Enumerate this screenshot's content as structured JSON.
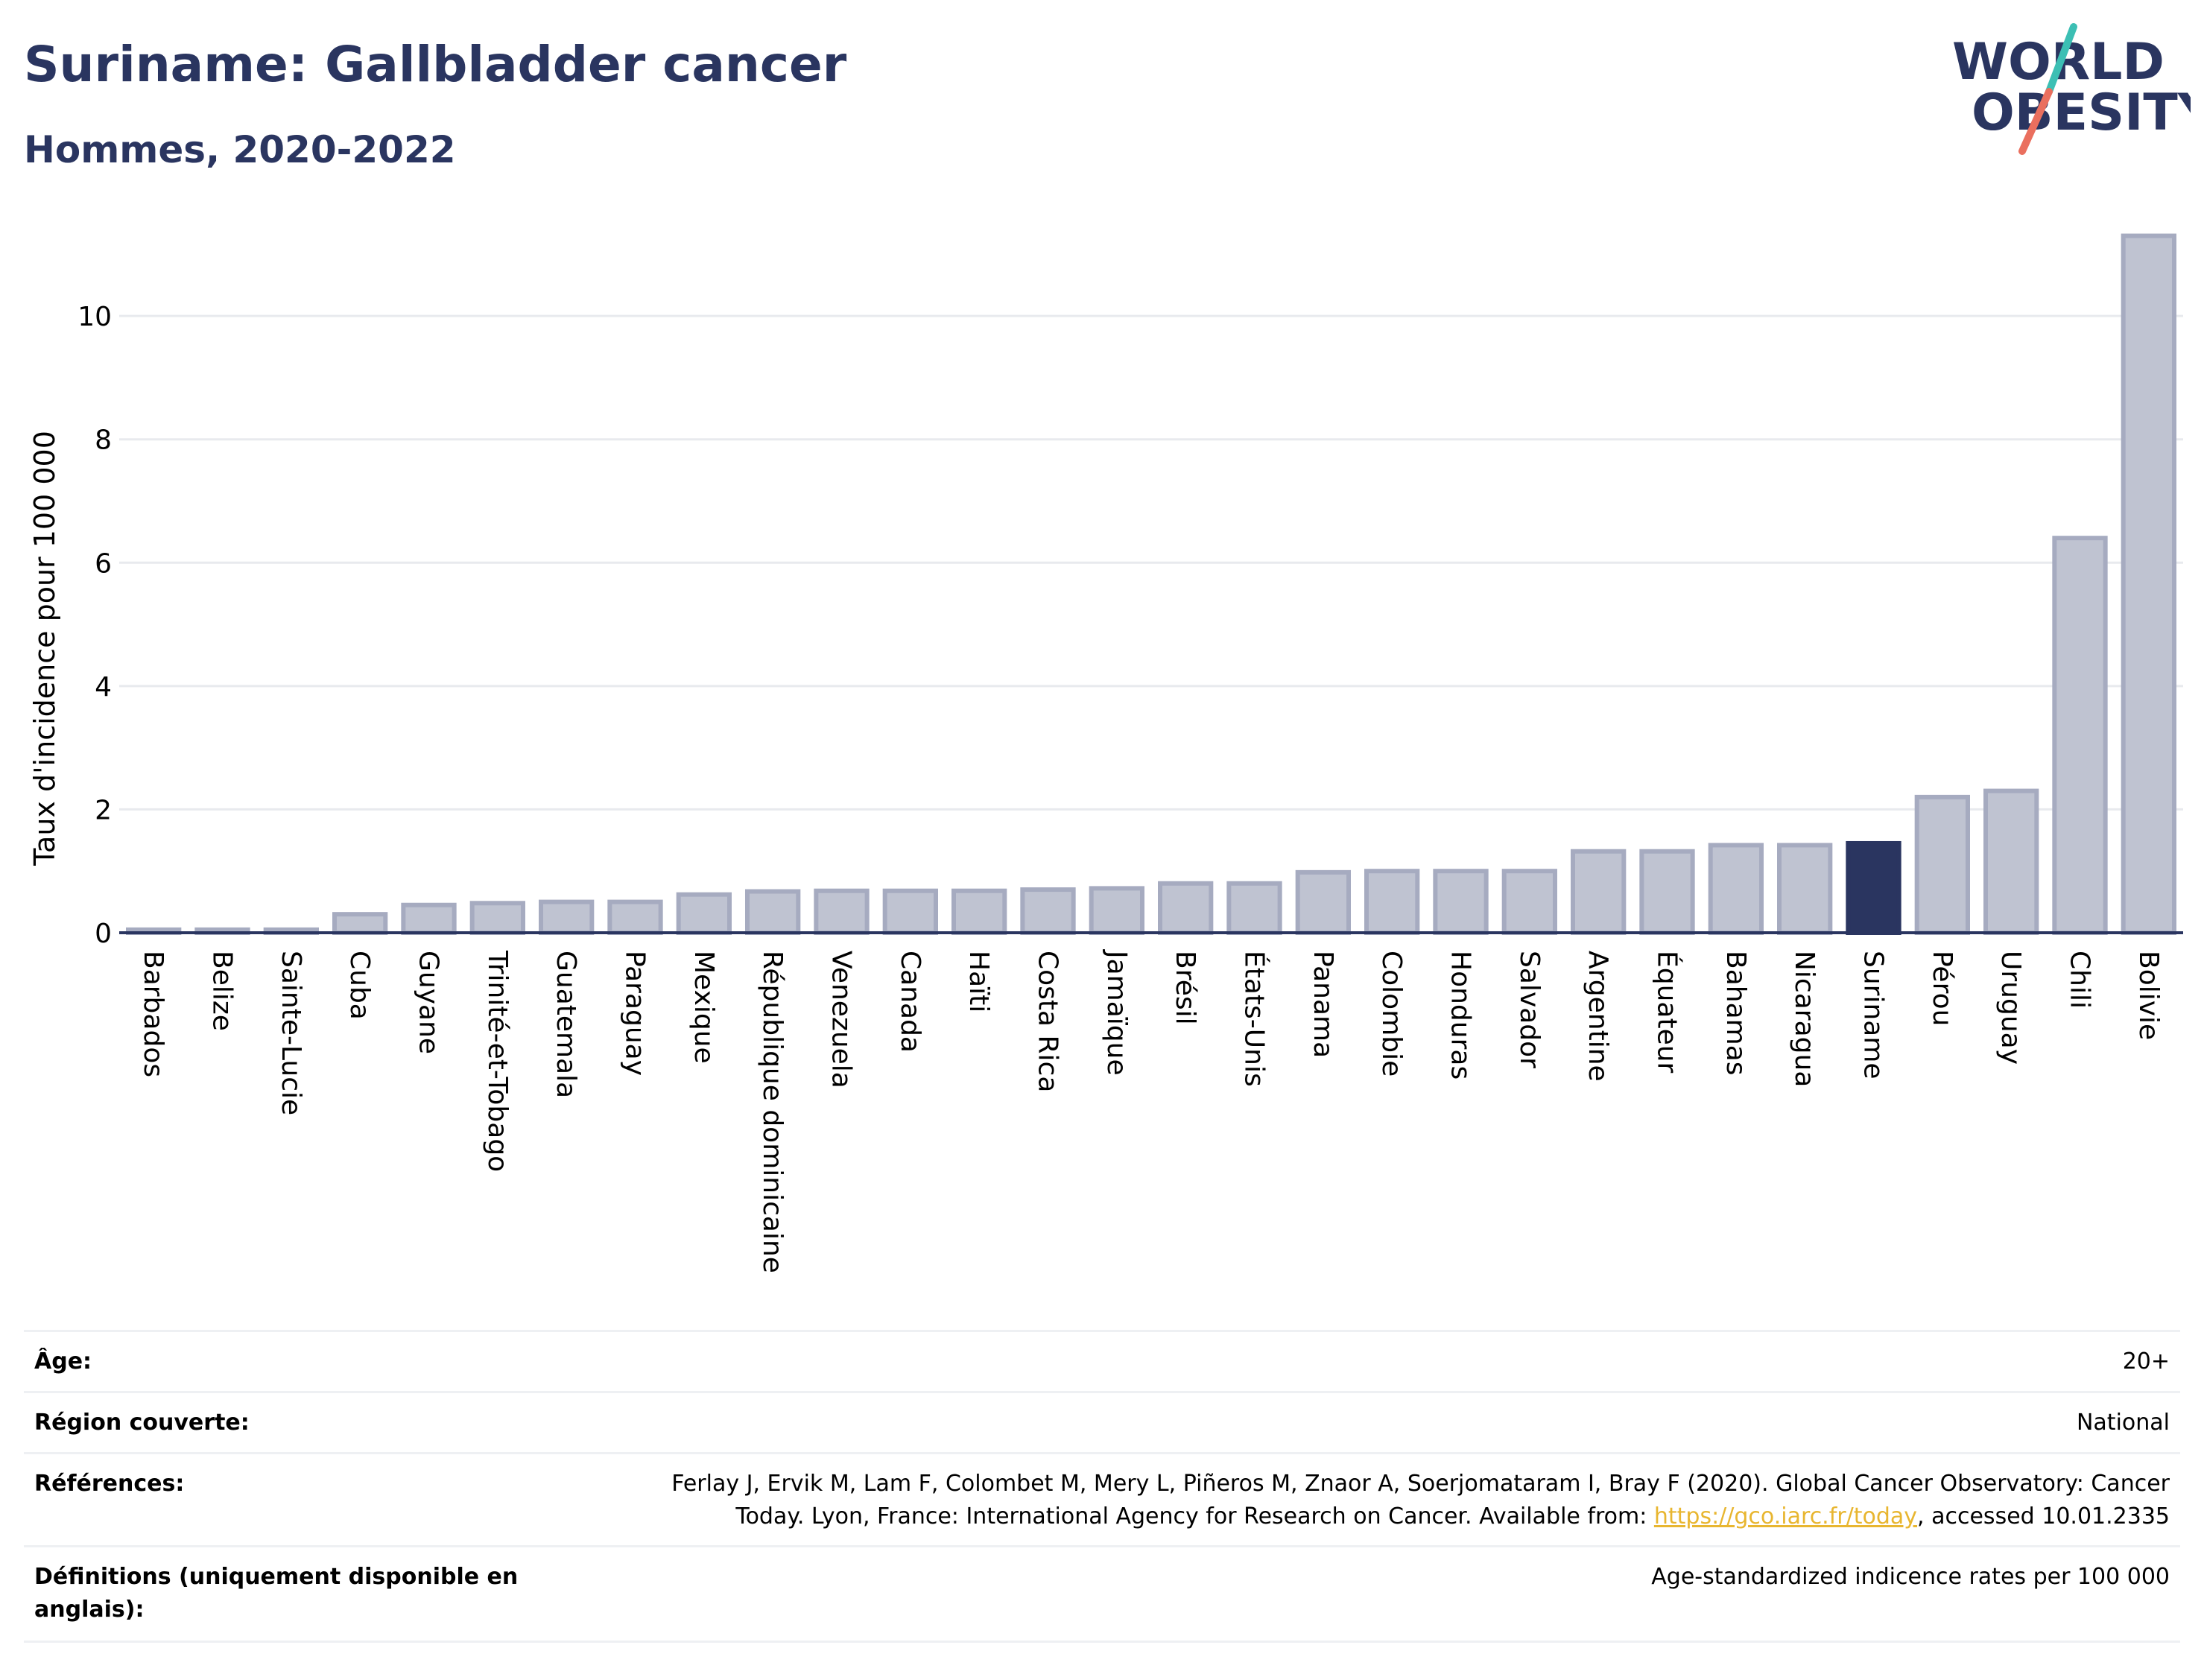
{
  "header": {
    "title": "Suriname: Gallbladder cancer",
    "subtitle": "Hommes, 2020-2022"
  },
  "logo": {
    "line1": "WORLD",
    "line2": "OBESITY"
  },
  "colors": {
    "bar_default": "#bfc3d1",
    "bar_default_stroke": "#a6abc0",
    "bar_highlight": "#2a3560",
    "grid": "#e8eaee",
    "axis": "#2a3560"
  },
  "chart_data": {
    "type": "bar",
    "title": "Suriname: Gallbladder cancer",
    "subtitle": "Hommes, 2020-2022",
    "ylabel": "Taux d'incidence pour 100 000",
    "xlabel": "",
    "ylim": [
      0,
      11.5
    ],
    "yticks": [
      0,
      2,
      4,
      6,
      8,
      10
    ],
    "grid": true,
    "highlight": "Suriname",
    "categories": [
      "Barbados",
      "Belize",
      "Sainte-Lucie",
      "Cuba",
      "Guyane",
      "Trinité-et-Tobago",
      "Guatemala",
      "Paraguay",
      "Mexique",
      "République dominicaine",
      "Venezuela",
      "Canada",
      "Haïti",
      "Costa Rica",
      "Jamaïque",
      "Brésil",
      "États-Unis",
      "Panama",
      "Colombie",
      "Honduras",
      "Salvador",
      "Argentine",
      "Équateur",
      "Bahamas",
      "Nicaragua",
      "Suriname",
      "Pérou",
      "Uruguay",
      "Chili",
      "Bolivie"
    ],
    "values": [
      0.05,
      0.05,
      0.05,
      0.3,
      0.45,
      0.48,
      0.5,
      0.5,
      0.62,
      0.67,
      0.68,
      0.68,
      0.68,
      0.7,
      0.72,
      0.8,
      0.8,
      0.98,
      1.0,
      1.0,
      1.0,
      1.32,
      1.32,
      1.42,
      1.42,
      1.45,
      2.2,
      2.3,
      6.4,
      11.3
    ]
  },
  "meta": {
    "age_label": "Âge:",
    "age_value": "20+",
    "region_label": "Région couverte:",
    "region_value": "National",
    "refs_label": "Références:",
    "refs_line1": "Ferlay J, Ervik M, Lam F, Colombet M, Mery L, Piñeros M, Znaor A, Soerjomataram I, Bray F (2020). Global Cancer Observatory: Cancer",
    "refs_line2_pre": "Today. Lyon, France: International Agency for Research on Cancer. Available from: ",
    "refs_link": "https://gco.iarc.fr/today",
    "refs_line2_post": ", accessed 10.01.2335",
    "defs_label": "Définitions (uniquement disponible en anglais):",
    "defs_value": "Age-standardized indicence rates per 100 000"
  }
}
